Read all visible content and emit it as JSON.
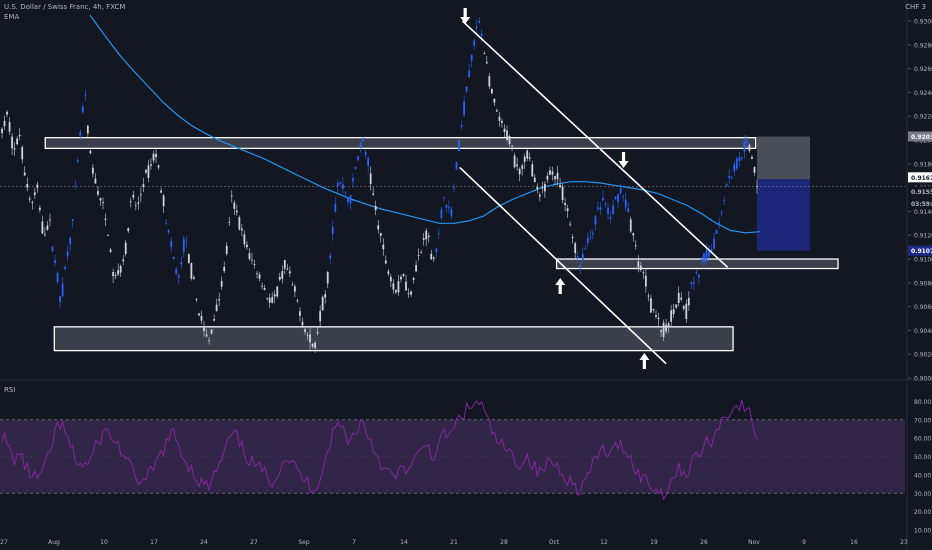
{
  "header": {
    "symbol": "U.S. Dollar / Swiss Franc, 4h, FXCM",
    "indicator": "EMA",
    "currency": "CHF",
    "currency_num": "3"
  },
  "rsi": {
    "label": "RSI"
  },
  "colors": {
    "background": "#131722",
    "candle": "#d1d4dc",
    "candle_blue": "#2962ff",
    "ema": "#2196f3",
    "rsi_line": "#8e24aa",
    "rsi_band": "#3a2a52",
    "zone_fill": "#5d606b",
    "target_fill": "#1e2a8a",
    "stop_fill": "#787b86"
  },
  "chart_data": [
    {
      "type": "line",
      "name": "price",
      "ylim": [
        0.9,
        0.93135
      ],
      "y_ticks": [
        "0.93000",
        "0.92800",
        "0.92600",
        "0.92400",
        "0.92200",
        "0.92000",
        "0.91800",
        "0.91600",
        "0.91400",
        "0.91200",
        "0.91000",
        "0.90800",
        "0.90600",
        "0.90400",
        "0.90200",
        "0.90000"
      ],
      "x_ticks": [
        "27",
        "Aug",
        "10",
        "17",
        "24",
        "27",
        "Sep",
        "7",
        "14",
        "21",
        "28",
        "Oct",
        "12",
        "19",
        "26",
        "Nov",
        "9",
        "16",
        "23"
      ],
      "price_labels": {
        "current": "0.91670",
        "second": "0.91551",
        "countdown": "03:59:56",
        "target": "0.91070",
        "stop": "0.92030"
      },
      "path": [
        0.9207,
        0.9222,
        0.9189,
        0.9205,
        0.9168,
        0.9145,
        0.9158,
        0.9121,
        0.9132,
        0.9098,
        0.9064,
        0.9102,
        0.9131,
        0.9189,
        0.9241,
        0.9185,
        0.9161,
        0.9145,
        0.9122,
        0.9081,
        0.9092,
        0.9109,
        0.9152,
        0.9142,
        0.9165,
        0.9175,
        0.9191,
        0.9162,
        0.9128,
        0.9101,
        0.9082,
        0.9118,
        0.9093,
        0.9065,
        0.9045,
        0.9028,
        0.9052,
        0.9071,
        0.9102,
        0.9151,
        0.9135,
        0.9118,
        0.9102,
        0.9093,
        0.9081,
        0.9069,
        0.9062,
        0.9078,
        0.9095,
        0.9081,
        0.9065,
        0.9049,
        0.9032,
        0.9025,
        0.9055,
        0.9075,
        0.9122,
        0.9165,
        0.9159,
        0.9148,
        0.9178,
        0.9201,
        0.9182,
        0.9151,
        0.9125,
        0.9098,
        0.9085,
        0.9072,
        0.909,
        0.9068,
        0.9092,
        0.9105,
        0.9125,
        0.9098,
        0.9115,
        0.9158,
        0.9132,
        0.9175,
        0.9215,
        0.9252,
        0.9281,
        0.9302,
        0.9268,
        0.9238,
        0.9221,
        0.9208,
        0.9201,
        0.9182,
        0.9175,
        0.9189,
        0.9175,
        0.9148,
        0.9162,
        0.9175,
        0.9169,
        0.9155,
        0.9138,
        0.9112,
        0.9095,
        0.911,
        0.9122,
        0.9138,
        0.915,
        0.9132,
        0.9148,
        0.916,
        0.9142,
        0.912,
        0.9095,
        0.9085,
        0.9062,
        0.9052,
        0.9038,
        0.9045,
        0.9062,
        0.907,
        0.9055,
        0.908,
        0.9085,
        0.9101,
        0.9105,
        0.9118,
        0.9142,
        0.9165,
        0.9175,
        0.9185,
        0.9197,
        0.9189,
        0.9165
      ],
      "blue_segments": [
        [
          9,
          14
        ],
        [
          28,
          31
        ],
        [
          56,
          62
        ],
        [
          74,
          81
        ],
        [
          98,
          106
        ],
        [
          117,
          126
        ]
      ],
      "ema": [
        0.9305,
        0.9288,
        0.9272,
        0.9258,
        0.9245,
        0.9232,
        0.9221,
        0.9212,
        0.9205,
        0.9199,
        0.9194,
        0.9189,
        0.9184,
        0.9178,
        0.9172,
        0.9166,
        0.916,
        0.9155,
        0.915,
        0.9146,
        0.9142,
        0.9139,
        0.9136,
        0.9133,
        0.913,
        0.913,
        0.9132,
        0.9136,
        0.9144,
        0.915,
        0.9155,
        0.916,
        0.9163,
        0.9165,
        0.9165,
        0.9164,
        0.9162,
        0.916,
        0.9158,
        0.9155,
        0.915,
        0.9145,
        0.9138,
        0.913,
        0.9124,
        0.9122,
        0.9123
      ],
      "zones": [
        {
          "y_top": 0.9202,
          "y_bottom": 0.9193,
          "x_from": 0.05,
          "x_to": 0.835
        },
        {
          "y_top": 0.9043,
          "y_bottom": 0.9023,
          "x_from": 0.06,
          "x_to": 0.81
        },
        {
          "y_top": 0.91,
          "y_bottom": 0.9092,
          "x_from": 0.615,
          "x_to": 0.926
        }
      ],
      "channel": [
        {
          "x1": 0.511,
          "y1": 0.93,
          "x2": 0.804,
          "y2": 0.9093
        },
        {
          "x1": 0.508,
          "y1": 0.9177,
          "x2": 0.736,
          "y2": 0.9012
        }
      ],
      "arrows": [
        {
          "x": 0.514,
          "dir": "down"
        },
        {
          "x": 0.689,
          "dir": "down"
        },
        {
          "x": 0.619,
          "dir": "up"
        },
        {
          "x": 0.712,
          "dir": "up"
        }
      ]
    },
    {
      "type": "line",
      "name": "RSI",
      "ylim": [
        10,
        90
      ],
      "y_ticks": [
        "80.00",
        "70.00",
        "60.00",
        "50.00",
        "40.00",
        "30.00",
        "20.00",
        "10.00"
      ],
      "band": [
        30,
        70
      ],
      "values": [
        62,
        55,
        48,
        52,
        44,
        40,
        38,
        42,
        50,
        64,
        68,
        60,
        52,
        46,
        45,
        48,
        56,
        62,
        64,
        58,
        55,
        48,
        42,
        38,
        35,
        40,
        45,
        52,
        58,
        63,
        56,
        48,
        44,
        38,
        35,
        33,
        40,
        46,
        55,
        62,
        60,
        52,
        48,
        45,
        42,
        40,
        36,
        44,
        50,
        48,
        42,
        38,
        35,
        32,
        40,
        50,
        62,
        68,
        64,
        58,
        64,
        70,
        62,
        55,
        48,
        42,
        40,
        38,
        46,
        42,
        48,
        52,
        58,
        50,
        54,
        64,
        60,
        68,
        73,
        76,
        78,
        80,
        72,
        64,
        58,
        55,
        52,
        48,
        46,
        50,
        46,
        40,
        44,
        48,
        45,
        42,
        38,
        34,
        32,
        38,
        44,
        50,
        55,
        50,
        54,
        58,
        52,
        46,
        40,
        38,
        34,
        32,
        30,
        34,
        40,
        44,
        40,
        48,
        50,
        56,
        58,
        62,
        70,
        74,
        76,
        78,
        76,
        72,
        60
      ]
    }
  ]
}
